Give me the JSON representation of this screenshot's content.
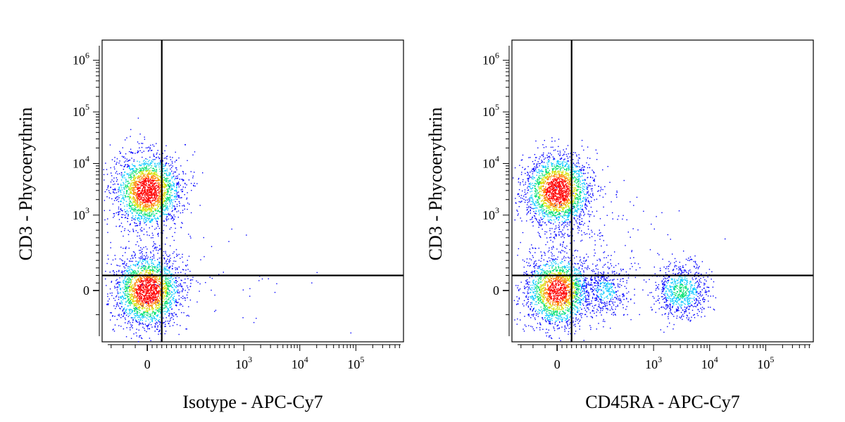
{
  "chart_data": [
    {
      "type": "scatter",
      "title": "",
      "xlabel": "Isotype - APC-Cy7",
      "ylabel": "CD3 - Phycoerythrin",
      "x_scale": "biexponential",
      "y_scale": "biexponential",
      "x_ticks": [
        {
          "value": 0,
          "base": "0",
          "exp": ""
        },
        {
          "value": 1000,
          "base": "10",
          "exp": "3"
        },
        {
          "value": 10000,
          "base": "10",
          "exp": "4"
        },
        {
          "value": 100000,
          "base": "10",
          "exp": "5"
        }
      ],
      "y_ticks": [
        {
          "value": 0,
          "base": "0",
          "exp": ""
        },
        {
          "value": 1000,
          "base": "10",
          "exp": "3"
        },
        {
          "value": 10000,
          "base": "10",
          "exp": "4"
        },
        {
          "value": 100000,
          "base": "10",
          "exp": "5"
        },
        {
          "value": 1000000,
          "base": "10",
          "exp": "6"
        }
      ],
      "quadrant_gate": {
        "x": 150,
        "y": 200
      },
      "populations": [
        {
          "x_center": 0,
          "y_center": 3000,
          "relative_count": 1.0
        },
        {
          "x_center": 0,
          "y_center": 0,
          "relative_count": 1.0
        },
        {
          "x_center": 200,
          "y_center": 300,
          "relative_count": 0.04
        },
        {
          "x_center": 2000,
          "y_center": 0,
          "relative_count": 0.01
        }
      ],
      "density_colors": [
        "#0000ff",
        "#00c8ff",
        "#00e070",
        "#d8e000",
        "#ff8000",
        "#ff0000"
      ]
    },
    {
      "type": "scatter",
      "title": "",
      "xlabel": "CD45RA - APC-Cy7",
      "ylabel": "CD3 - Phycoerythrin",
      "x_scale": "biexponential",
      "y_scale": "biexponential",
      "x_ticks": [
        {
          "value": 0,
          "base": "0",
          "exp": ""
        },
        {
          "value": 1000,
          "base": "10",
          "exp": "3"
        },
        {
          "value": 10000,
          "base": "10",
          "exp": "4"
        },
        {
          "value": 100000,
          "base": "10",
          "exp": "5"
        }
      ],
      "y_ticks": [
        {
          "value": 0,
          "base": "0",
          "exp": ""
        },
        {
          "value": 1000,
          "base": "10",
          "exp": "3"
        },
        {
          "value": 10000,
          "base": "10",
          "exp": "4"
        },
        {
          "value": 100000,
          "base": "10",
          "exp": "5"
        },
        {
          "value": 1000000,
          "base": "10",
          "exp": "6"
        }
      ],
      "quadrant_gate": {
        "x": 150,
        "y": 200
      },
      "populations": [
        {
          "x_center": 0,
          "y_center": 3000,
          "relative_count": 1.0
        },
        {
          "x_center": 0,
          "y_center": 0,
          "relative_count": 0.9
        },
        {
          "x_center": 3000,
          "y_center": 0,
          "relative_count": 0.35
        },
        {
          "x_center": 500,
          "y_center": 0,
          "relative_count": 0.2
        },
        {
          "x_center": 400,
          "y_center": 800,
          "relative_count": 0.06
        }
      ],
      "density_colors": [
        "#0000ff",
        "#00c8ff",
        "#00e070",
        "#d8e000",
        "#ff8000",
        "#ff0000"
      ]
    }
  ]
}
